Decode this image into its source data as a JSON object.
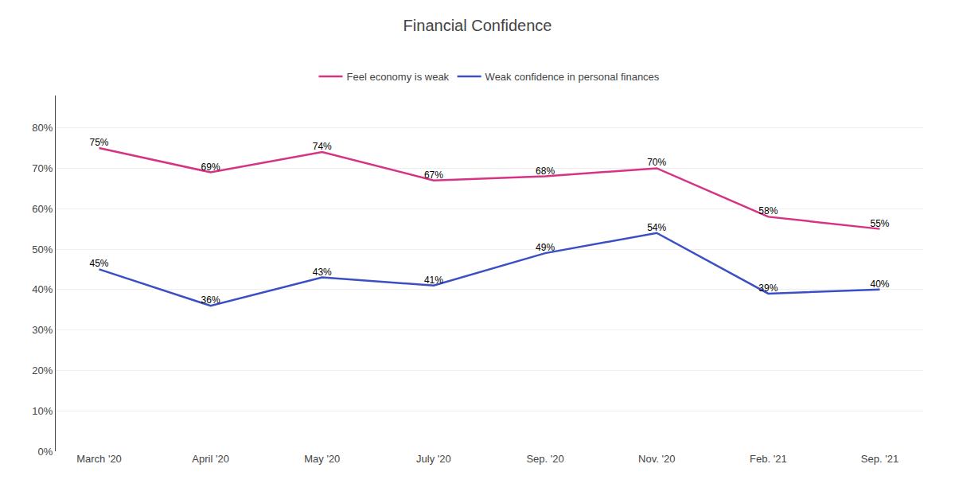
{
  "chart_data": {
    "type": "line",
    "title": "Financial Confidence",
    "categories": [
      "March '20",
      "April '20",
      "May '20",
      "July '20",
      "Sep. '20",
      "Nov. '20",
      "Feb. '21",
      "Sep. '21"
    ],
    "series": [
      {
        "name": "Feel economy is weak",
        "color": "#d63384",
        "values": [
          0.75,
          0.69,
          0.74,
          0.67,
          0.68,
          0.7,
          0.58,
          0.55
        ],
        "value_labels": [
          "75%",
          "69%",
          "74%",
          "67%",
          "68%",
          "70%",
          "58%",
          "55%"
        ]
      },
      {
        "name": "Weak confidence in personal finances",
        "color": "#3a4fc4",
        "values": [
          0.45,
          0.36,
          0.43,
          0.41,
          0.49,
          0.54,
          0.39,
          0.4
        ],
        "value_labels": [
          "45%",
          "36%",
          "43%",
          "41%",
          "49%",
          "54%",
          "39%",
          "40%"
        ]
      }
    ],
    "ylim": [
      0.0,
      0.88
    ],
    "yticks": [
      {
        "value": 0.0,
        "label": "0%"
      },
      {
        "value": 0.1,
        "label": "10%"
      },
      {
        "value": 0.2,
        "label": "20%"
      },
      {
        "value": 0.3,
        "label": "30%"
      },
      {
        "value": 0.4,
        "label": "40%"
      },
      {
        "value": 0.5,
        "label": "50%"
      },
      {
        "value": 0.6,
        "label": "60%"
      },
      {
        "value": 0.7,
        "label": "70%"
      },
      {
        "value": 0.8,
        "label": "80%"
      }
    ],
    "grid": true,
    "legend": "top",
    "data_labels": true
  }
}
